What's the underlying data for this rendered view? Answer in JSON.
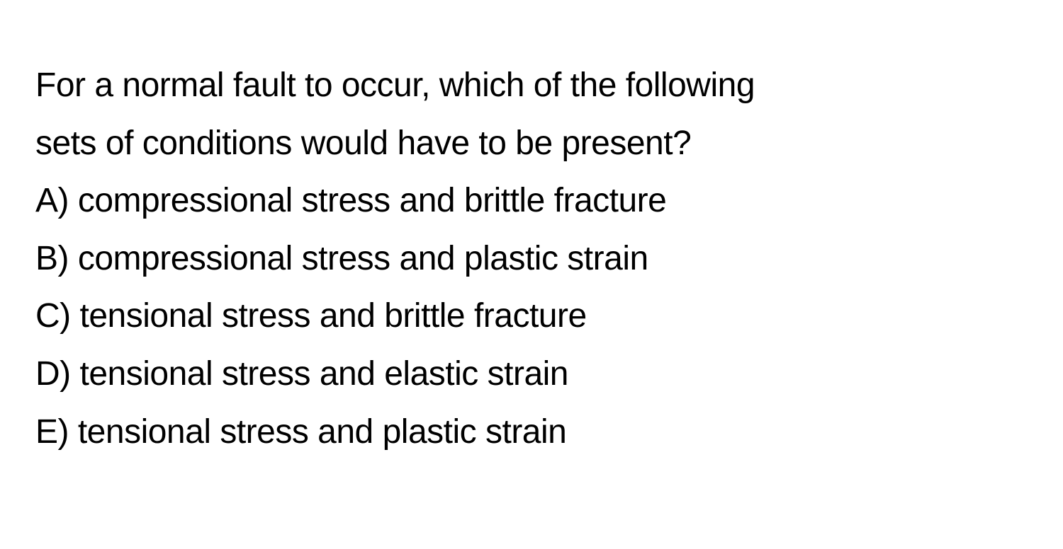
{
  "question": {
    "line1": "For a normal fault to occur, which of the following",
    "line2": "sets of conditions would have to be present?"
  },
  "options": {
    "a": "A) compressional stress and brittle fracture",
    "b": "B) compressional stress and plastic strain",
    "c": "C) tensional stress and brittle fracture",
    "d": "D) tensional stress and elastic strain",
    "e": "E) tensional stress and plastic strain"
  },
  "colors": {
    "background": "#ffffff",
    "text": "#000000"
  },
  "typography": {
    "fontSize": 48,
    "lineHeight": 1.7,
    "fontWeight": 400
  }
}
